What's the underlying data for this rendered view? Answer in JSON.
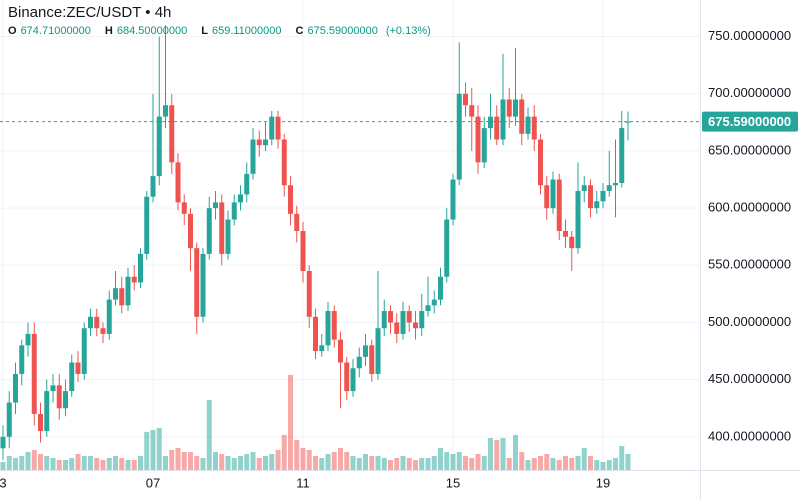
{
  "header": {
    "title": "Binance:ZEC/USDT • 4h",
    "ohlc": [
      {
        "label": "O",
        "value": "674.71000000"
      },
      {
        "label": "H",
        "value": "684.50000000"
      },
      {
        "label": "L",
        "value": "659.11000000"
      },
      {
        "label": "C",
        "value": "675.59000000"
      }
    ],
    "change": "(+0.13%)"
  },
  "chart_data": {
    "type": "candlestick",
    "categories": [
      "3",
      null,
      null,
      null,
      null,
      null,
      null,
      null,
      null,
      null,
      null,
      null,
      null,
      null,
      null,
      null,
      null,
      null,
      null,
      null,
      null,
      null,
      null,
      null,
      "07",
      null,
      null,
      null,
      null,
      null,
      null,
      null,
      null,
      null,
      null,
      null,
      null,
      null,
      null,
      null,
      null,
      null,
      null,
      null,
      null,
      null,
      null,
      null,
      "11",
      null,
      null,
      null,
      null,
      null,
      null,
      null,
      null,
      null,
      null,
      null,
      null,
      null,
      null,
      null,
      null,
      null,
      null,
      null,
      null,
      null,
      null,
      null,
      "15",
      null,
      null,
      null,
      null,
      null,
      null,
      null,
      null,
      null,
      null,
      null,
      null,
      null,
      null,
      null,
      null,
      null,
      null,
      null,
      null,
      null,
      null,
      null,
      "19",
      null,
      null,
      null,
      null
    ],
    "open": [
      390,
      400,
      430,
      455,
      480,
      490,
      420,
      405,
      440,
      445,
      425,
      440,
      465,
      455,
      495,
      505,
      495,
      490,
      520,
      530,
      515,
      540,
      535,
      560,
      610,
      628,
      680,
      690,
      640,
      605,
      595,
      565,
      505,
      560,
      600,
      605,
      560,
      590,
      605,
      612,
      630,
      660,
      655,
      660,
      680,
      660,
      620,
      595,
      580,
      545,
      505,
      475,
      480,
      510,
      485,
      465,
      440,
      460,
      470,
      480,
      455,
      495,
      510,
      500,
      490,
      510,
      500,
      495,
      510,
      515,
      520,
      540,
      590,
      625,
      700,
      690,
      680,
      640,
      670,
      680,
      660,
      695,
      680,
      695,
      665,
      680,
      660,
      620,
      600,
      625,
      580,
      575,
      565,
      615,
      620,
      600,
      606,
      615,
      620,
      622,
      674.71
    ],
    "high": [
      410,
      440,
      465,
      485,
      500,
      500,
      430,
      450,
      455,
      455,
      450,
      472,
      475,
      500,
      512,
      512,
      500,
      528,
      545,
      540,
      548,
      550,
      565,
      615,
      700,
      750,
      760,
      700,
      648,
      612,
      600,
      570,
      565,
      610,
      615,
      612,
      598,
      612,
      620,
      640,
      670,
      668,
      675,
      685,
      685,
      665,
      628,
      602,
      588,
      550,
      512,
      490,
      518,
      515,
      492,
      470,
      468,
      478,
      490,
      485,
      545,
      520,
      515,
      508,
      518,
      515,
      510,
      525,
      540,
      528,
      548,
      600,
      630,
      745,
      710,
      705,
      690,
      680,
      700,
      690,
      735,
      705,
      740,
      700,
      688,
      690,
      665,
      628,
      632,
      630,
      590,
      580,
      640,
      628,
      625,
      615,
      622,
      650,
      660,
      685,
      684.5
    ],
    "low": [
      380,
      390,
      420,
      445,
      470,
      410,
      395,
      400,
      430,
      415,
      418,
      435,
      448,
      450,
      488,
      488,
      482,
      485,
      515,
      508,
      510,
      528,
      530,
      555,
      605,
      620,
      670,
      630,
      598,
      585,
      545,
      490,
      500,
      555,
      590,
      550,
      555,
      585,
      598,
      605,
      625,
      645,
      650,
      655,
      652,
      610,
      585,
      570,
      535,
      495,
      468,
      470,
      475,
      478,
      425,
      432,
      435,
      452,
      462,
      448,
      450,
      488,
      490,
      482,
      485,
      492,
      485,
      488,
      505,
      508,
      515,
      535,
      585,
      620,
      680,
      650,
      630,
      635,
      660,
      655,
      655,
      670,
      672,
      655,
      660,
      650,
      612,
      590,
      595,
      572,
      565,
      545,
      560,
      605,
      592,
      595,
      600,
      610,
      592,
      618,
      659.11
    ],
    "close": [
      400,
      430,
      455,
      480,
      490,
      420,
      405,
      440,
      445,
      425,
      440,
      465,
      455,
      495,
      505,
      495,
      490,
      520,
      530,
      515,
      540,
      535,
      560,
      610,
      628,
      680,
      690,
      640,
      605,
      595,
      565,
      505,
      560,
      600,
      605,
      560,
      590,
      605,
      612,
      630,
      660,
      655,
      660,
      680,
      660,
      620,
      595,
      580,
      545,
      505,
      475,
      480,
      510,
      485,
      465,
      440,
      460,
      470,
      480,
      455,
      495,
      510,
      500,
      490,
      510,
      500,
      495,
      510,
      515,
      520,
      540,
      590,
      625,
      700,
      690,
      680,
      640,
      670,
      680,
      660,
      695,
      680,
      695,
      665,
      680,
      660,
      620,
      600,
      625,
      580,
      575,
      565,
      615,
      620,
      600,
      606,
      615,
      620,
      622,
      670,
      675.59
    ],
    "volume": [
      8,
      14,
      12,
      14,
      18,
      20,
      16,
      14,
      12,
      10,
      10,
      12,
      16,
      14,
      14,
      12,
      10,
      12,
      14,
      12,
      10,
      10,
      14,
      38,
      40,
      42,
      14,
      20,
      22,
      18,
      18,
      14,
      12,
      70,
      18,
      16,
      14,
      12,
      14,
      16,
      18,
      12,
      14,
      16,
      20,
      35,
      95,
      30,
      22,
      20,
      14,
      12,
      16,
      18,
      22,
      18,
      14,
      12,
      16,
      14,
      14,
      12,
      10,
      12,
      14,
      12,
      10,
      12,
      12,
      14,
      22,
      18,
      16,
      18,
      14,
      12,
      16,
      14,
      32,
      30,
      32,
      12,
      35,
      18,
      10,
      12,
      14,
      16,
      12,
      10,
      14,
      12,
      14,
      22,
      14,
      10,
      8,
      10,
      12,
      24,
      16
    ],
    "up_color": "#26a69a",
    "down_color": "#ef5350",
    "ylim": [
      371,
      782
    ],
    "volume_lim": [
      0,
      100
    ],
    "yticks": [
      {
        "value": 400,
        "label": "400.00000000"
      },
      {
        "value": 450,
        "label": "450.00000000"
      },
      {
        "value": 500,
        "label": "500.00000000"
      },
      {
        "value": 550,
        "label": "550.00000000"
      },
      {
        "value": 600,
        "label": "600.00000000"
      },
      {
        "value": 650,
        "label": "650.00000000"
      },
      {
        "value": 700,
        "label": "700.00000000"
      },
      {
        "value": 750,
        "label": "750.00000000"
      }
    ],
    "last_price": {
      "value": 675.59,
      "label": "675.59000000"
    },
    "grid": true
  }
}
